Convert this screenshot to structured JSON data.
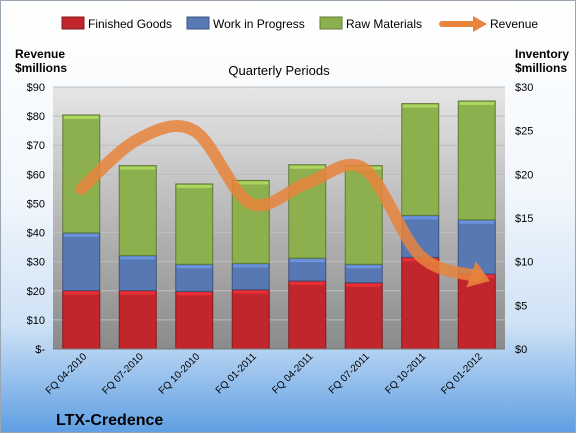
{
  "chart_data": {
    "type": "bar",
    "stacked": true,
    "title": "Quarterly Periods",
    "company": "LTX-Credence",
    "left_axis_title_line1": "Revenue",
    "left_axis_title_line2": "$millions",
    "right_axis_title_line1": "Inventory",
    "right_axis_title_line2": "$millions",
    "categories": [
      "FQ 04-2010",
      "FQ 07-2010",
      "FQ 10-2010",
      "FQ 01-2011",
      "FQ 04-2011",
      "FQ 07-2011",
      "FQ 10-2011",
      "FQ 01-2012"
    ],
    "left_ticks": [
      "$-",
      "$10",
      "$20",
      "$30",
      "$40",
      "$50",
      "$60",
      "$70",
      "$80",
      "$90"
    ],
    "right_ticks": [
      "$0",
      "$5",
      "$10",
      "$15",
      "$20",
      "$25",
      "$30"
    ],
    "left_ylim": [
      0,
      90
    ],
    "right_ylim": [
      0,
      30
    ],
    "legend_position": "top",
    "grid": true,
    "series": [
      {
        "name": "Finished Goods",
        "axis": "right",
        "color": "#c0262c",
        "values": [
          6.7,
          6.7,
          6.6,
          6.8,
          7.8,
          7.6,
          10.5,
          8.6
        ]
      },
      {
        "name": "Work in Progress",
        "axis": "right",
        "color": "#5878b4",
        "values": [
          6.6,
          4.0,
          3.1,
          3.0,
          2.6,
          2.1,
          4.8,
          6.2
        ]
      },
      {
        "name": "Raw Materials",
        "axis": "right",
        "color": "#8cb04e",
        "values": [
          13.5,
          10.3,
          9.2,
          9.5,
          10.7,
          11.3,
          12.8,
          13.6
        ]
      }
    ],
    "line_series": {
      "name": "Revenue",
      "axis": "left",
      "color": "#e8843c",
      "values": [
        55,
        72,
        75,
        50,
        57,
        62,
        32,
        25
      ]
    }
  }
}
